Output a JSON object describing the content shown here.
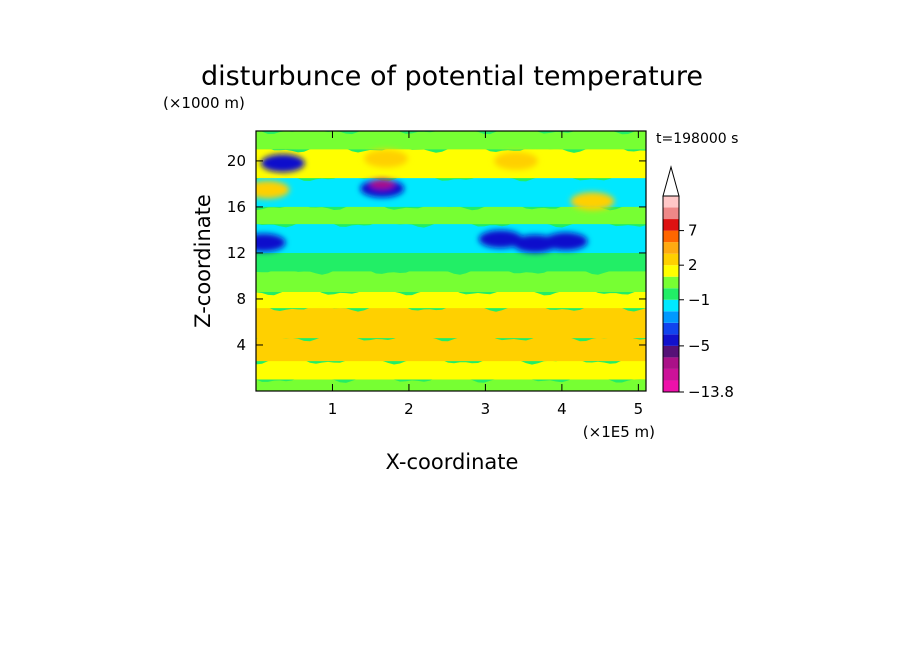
{
  "chart_data": {
    "type": "heatmap",
    "title": "disturbunce of potential temperature",
    "y_unit": "(×1000 m)",
    "x_unit": "(×1E5 m)",
    "xlabel": "X-coordinate",
    "ylabel": "Z-coordinate",
    "time_label": "t=198000 s",
    "xlim": [
      0,
      5.1
    ],
    "ylim": [
      0,
      22.6
    ],
    "x_ticks": [
      "1",
      "2",
      "3",
      "4",
      "5"
    ],
    "y_ticks": [
      "4",
      "8",
      "12",
      "16",
      "20"
    ],
    "colorbar": {
      "labels": [
        "7",
        "2",
        "−1",
        "−5",
        "−13.8"
      ],
      "label_values": [
        7,
        2,
        -1,
        -5,
        -13.8
      ],
      "bin_edges": [
        -13.8,
        -11,
        -9,
        -7,
        -5,
        -4,
        -3,
        -2,
        -1,
        0,
        1,
        2,
        3,
        5,
        7,
        9,
        11,
        13
      ],
      "colors": [
        "#ee11aa",
        "#cc1199",
        "#aa1188",
        "#551177",
        "#1111cc",
        "#1144ee",
        "#0099ff",
        "#00e8ff",
        "#22ee66",
        "#77ff33",
        "#ffff00",
        "#ffd000",
        "#ffaa11",
        "#ff6600",
        "#dd1111",
        "#ee8888",
        "#ffc8c8"
      ],
      "overflow_arrow": true
    },
    "layers": [
      {
        "z": [
          0,
          1
        ],
        "value": 0.5
      },
      {
        "z": [
          1,
          2.6
        ],
        "value": 1.5
      },
      {
        "z": [
          2.6,
          4.6
        ],
        "value": 2.6
      },
      {
        "z": [
          4.6,
          7.2
        ],
        "value": 2.6
      },
      {
        "z": [
          7.2,
          8.6
        ],
        "value": 1.5
      },
      {
        "z": [
          8.6,
          10.4
        ],
        "value": 0.5
      },
      {
        "z": [
          10.4,
          12
        ],
        "value": -0.5
      },
      {
        "z": [
          12,
          14.5
        ],
        "value": -1.5
      },
      {
        "z": [
          14.5,
          16
        ],
        "value": 0.5
      },
      {
        "z": [
          16,
          18.5
        ],
        "value": -1.5
      },
      {
        "z": [
          18.5,
          21
        ],
        "value": 1.5
      },
      {
        "z": [
          21,
          22.6
        ],
        "value": 0.5
      }
    ],
    "features": [
      {
        "x": 0.85,
        "z": 6.0,
        "value": 2.6
      },
      {
        "x": 1.65,
        "z": 17.6,
        "value": -4.5
      },
      {
        "x": 1.65,
        "z": 18.0,
        "value": -7.5
      },
      {
        "x": 0.35,
        "z": 19.8,
        "value": -4.5
      },
      {
        "x": 3.2,
        "z": 13.2,
        "value": -4.5
      },
      {
        "x": 3.65,
        "z": 12.8,
        "value": -4.5
      },
      {
        "x": 4.05,
        "z": 13.0,
        "value": -4.5
      },
      {
        "x": 0.1,
        "z": 12.9,
        "value": -4.5
      },
      {
        "x": 1.7,
        "z": 20.2,
        "value": 2.6
      },
      {
        "x": 0.15,
        "z": 17.5,
        "value": 2.6
      },
      {
        "x": 4.4,
        "z": 16.5,
        "value": 2.6
      },
      {
        "x": 3.4,
        "z": 20.0,
        "value": 2.6
      }
    ]
  }
}
